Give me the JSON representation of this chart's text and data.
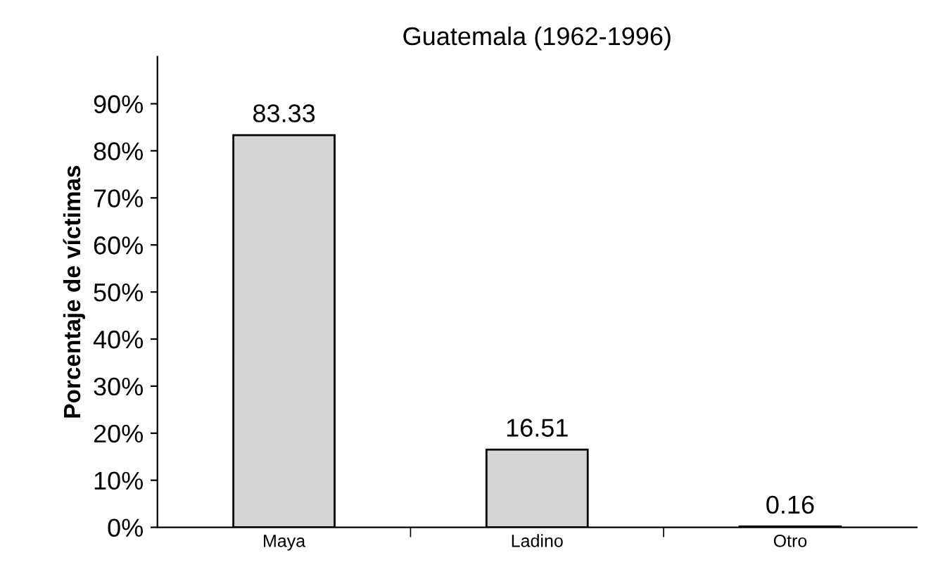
{
  "chart_data": {
    "type": "bar",
    "title": "Guatemala (1962-1996)",
    "ylabel": "Porcentaje de víctimas",
    "categories": [
      "Maya",
      "Ladino",
      "Otro"
    ],
    "values": [
      83.33,
      16.51,
      0.16
    ],
    "color": "#d4d4d4",
    "data_labels": true,
    "ylim": [
      0,
      100
    ],
    "yticks": [
      {
        "value": 0,
        "label": "0%"
      },
      {
        "value": 10,
        "label": "10%"
      },
      {
        "value": 20,
        "label": "20%"
      },
      {
        "value": 30,
        "label": "30%"
      },
      {
        "value": 40,
        "label": "40%"
      },
      {
        "value": 50,
        "label": "50%"
      },
      {
        "value": 60,
        "label": "60%"
      },
      {
        "value": 70,
        "label": "70%"
      },
      {
        "value": 80,
        "label": "80%"
      },
      {
        "value": 90,
        "label": "90%"
      }
    ],
    "grid": false,
    "legend": false
  }
}
